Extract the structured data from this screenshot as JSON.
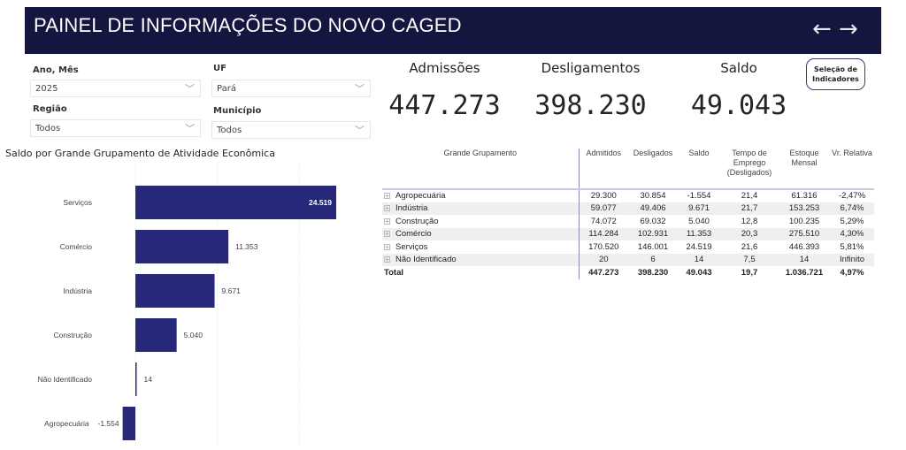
{
  "header": {
    "title": "PAINEL DE INFORMAÇÕES DO NOVO CAGED",
    "back_icon": "←",
    "forward_icon": "→"
  },
  "filters": {
    "ano_mes": {
      "label": "Ano, Mês",
      "value": "2025"
    },
    "uf": {
      "label": "UF",
      "value": "Pará"
    },
    "regiao": {
      "label": "Região",
      "value": "Todos"
    },
    "municipio": {
      "label": "Município",
      "value": "Todos"
    }
  },
  "kpis": [
    {
      "label": "Admissões",
      "value": "447.273"
    },
    {
      "label": "Desligamentos",
      "value": "398.230"
    },
    {
      "label": "Saldo",
      "value": "49.043"
    }
  ],
  "selection_button": {
    "line1": "Seleção de",
    "line2": "Indicadores"
  },
  "table": {
    "headers": [
      "Grande Grupamento",
      "Admitidos",
      "Desligados",
      "Saldo",
      "Tempo de Emprego (Desligados)",
      "Estoque Mensal",
      "Vr. Relativa"
    ],
    "rows": [
      [
        "Agropecuária",
        "29.300",
        "30.854",
        "-1.554",
        "21,4",
        "61.316",
        "-2,47%"
      ],
      [
        "Indústria",
        "59.077",
        "49.406",
        "9.671",
        "21,7",
        "153.253",
        "6,74%"
      ],
      [
        "Construção",
        "74.072",
        "69.032",
        "5.040",
        "12,8",
        "100.235",
        "5,29%"
      ],
      [
        "Comércio",
        "114.284",
        "102.931",
        "11.353",
        "20,3",
        "275.510",
        "4,30%"
      ],
      [
        "Serviços",
        "170.520",
        "146.001",
        "24.519",
        "21,6",
        "446.393",
        "5,81%"
      ],
      [
        "Não Identificado",
        "20",
        "6",
        "14",
        "7,5",
        "14",
        "Infinito"
      ]
    ],
    "total": [
      "Total",
      "447.273",
      "398.230",
      "49.043",
      "19,7",
      "1.036.721",
      "4,97%"
    ]
  },
  "chart_data": {
    "type": "bar",
    "orientation": "horizontal",
    "title": "Saldo por Grande Grupamento de Atividade Econômica",
    "categories": [
      "Serviços",
      "Comércio",
      "Indústria",
      "Construção",
      "Não Identificado",
      "Agropecuária"
    ],
    "values": [
      24519,
      11353,
      9671,
      5040,
      14,
      -1554
    ],
    "labels": [
      "24.519",
      "11.353",
      "9.671",
      "5.040",
      "14",
      "-1.554"
    ],
    "color": "#28287a"
  }
}
